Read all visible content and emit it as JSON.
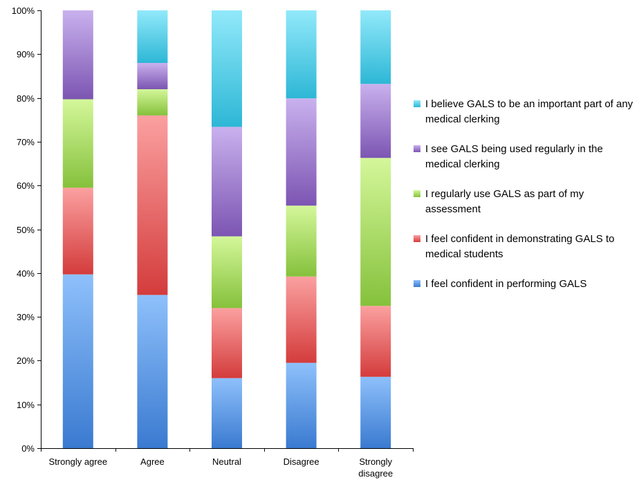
{
  "chart_data": {
    "type": "bar",
    "stacked": true,
    "percent_stacked": true,
    "categories": [
      "Strongly agree",
      "Agree",
      "Neutral",
      "Disagree",
      "Strongly disagree"
    ],
    "series": [
      {
        "name": "I feel confident in performing GALS",
        "values": [
          39.7,
          35.0,
          16.0,
          19.5,
          16.3
        ],
        "colors": [
          "#8ec0fb",
          "#3a7ad0"
        ]
      },
      {
        "name": "I feel confident in demonstrating GALS to medical students",
        "values": [
          19.8,
          41.0,
          16.0,
          19.7,
          16.2
        ],
        "colors": [
          "#fba0a0",
          "#d43c3c"
        ]
      },
      {
        "name": "I regularly use GALS as part of my assessment",
        "values": [
          20.2,
          6.0,
          16.4,
          16.2,
          33.8
        ],
        "colors": [
          "#d4f79a",
          "#85c13c"
        ]
      },
      {
        "name": "I see GALS being used regularly in the medical clerking",
        "values": [
          20.3,
          6.0,
          25.0,
          24.5,
          16.9
        ],
        "colors": [
          "#c9b1ee",
          "#7c55b2"
        ]
      },
      {
        "name": "I believe GALS to be an important part of any medical clerking",
        "values": [
          0,
          12.0,
          26.6,
          20.1,
          16.8
        ],
        "colors": [
          "#92e9fa",
          "#2db7d6"
        ]
      }
    ],
    "ylim": [
      0,
      100
    ],
    "yticks": [
      "0%",
      "10%",
      "20%",
      "30%",
      "40%",
      "50%",
      "60%",
      "70%",
      "80%",
      "90%",
      "100%"
    ],
    "grid": false,
    "legend_position": "right",
    "legend_order": "reverse"
  }
}
